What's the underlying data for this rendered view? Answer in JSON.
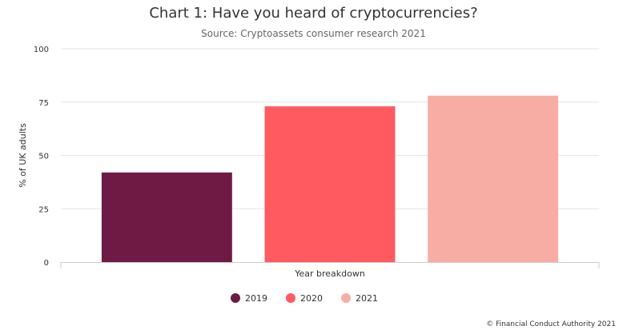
{
  "chart_data": {
    "type": "bar",
    "title": "Chart 1: Have you heard of cryptocurrencies?",
    "subtitle": "Source: Cryptoassets consumer research 2021",
    "xlabel": "Year breakdown",
    "ylabel": "% of UK adults",
    "ylim": [
      0,
      100
    ],
    "yticks": [
      0,
      25,
      50,
      75,
      100
    ],
    "grid": true,
    "legend_position": "bottom",
    "series": [
      {
        "name": "2019",
        "value": 42,
        "color": "#6e1a44"
      },
      {
        "name": "2020",
        "value": 73,
        "color": "#ff5a5f"
      },
      {
        "name": "2021",
        "value": 78,
        "color": "#f8ada4"
      }
    ]
  },
  "credit": "© Financial Conduct Authority 2021"
}
